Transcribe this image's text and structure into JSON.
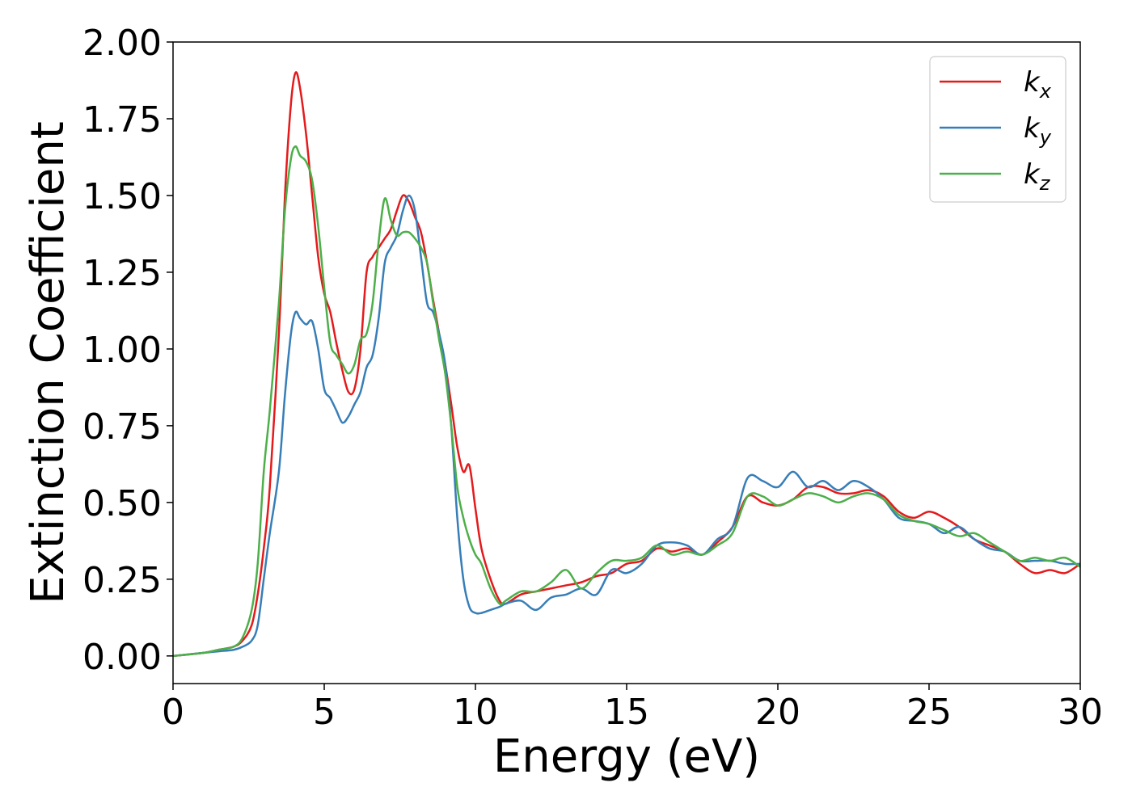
{
  "chart_data": {
    "type": "line",
    "title": "",
    "xlabel": "Energy (eV)",
    "ylabel": "Extinction Coefficient",
    "xlim": [
      0,
      30
    ],
    "ylim": [
      -0.09,
      2.0
    ],
    "xticks": [
      0,
      5,
      10,
      15,
      20,
      25,
      30
    ],
    "xtick_labels": [
      "0",
      "5",
      "10",
      "15",
      "20",
      "25",
      "30"
    ],
    "yticks": [
      0,
      0.25,
      0.5,
      0.75,
      1.0,
      1.25,
      1.5,
      1.75,
      2.0
    ],
    "ytick_labels": [
      "0.00",
      "0.25",
      "0.50",
      "0.75",
      "1.00",
      "1.25",
      "1.50",
      "1.75",
      "2.00"
    ],
    "grid": false,
    "legend_position": "top-right",
    "series": [
      {
        "name": "k_x",
        "label_main": "k",
        "label_sub": "x",
        "color": "#e41a1c",
        "x": [
          0,
          1,
          1.5,
          2,
          2.3,
          2.6,
          2.8,
          3.0,
          3.2,
          3.5,
          3.7,
          3.9,
          4.05,
          4.2,
          4.4,
          4.6,
          4.8,
          5.0,
          5.2,
          5.4,
          5.6,
          5.8,
          6.0,
          6.2,
          6.4,
          6.6,
          6.8,
          7.0,
          7.2,
          7.4,
          7.6,
          7.8,
          8.0,
          8.2,
          8.4,
          8.6,
          8.8,
          9.0,
          9.2,
          9.4,
          9.6,
          9.8,
          10.0,
          10.2,
          10.5,
          10.8,
          11.0,
          11.5,
          12.0,
          12.5,
          13.0,
          13.5,
          14.0,
          14.5,
          15.0,
          15.5,
          16.0,
          16.5,
          17.0,
          17.5,
          18.0,
          18.5,
          19.0,
          19.5,
          20.0,
          20.5,
          21.0,
          21.5,
          22.0,
          22.5,
          23.0,
          23.5,
          24.0,
          24.5,
          25.0,
          25.5,
          26.0,
          26.5,
          27.0,
          27.5,
          28.0,
          28.5,
          29.0,
          29.5,
          30.0
        ],
        "values": [
          0,
          0.01,
          0.02,
          0.03,
          0.05,
          0.1,
          0.2,
          0.35,
          0.55,
          1.05,
          1.5,
          1.8,
          1.9,
          1.85,
          1.7,
          1.5,
          1.3,
          1.18,
          1.12,
          1.02,
          0.93,
          0.86,
          0.87,
          1.0,
          1.25,
          1.3,
          1.33,
          1.36,
          1.39,
          1.45,
          1.5,
          1.48,
          1.43,
          1.38,
          1.28,
          1.16,
          1.05,
          0.95,
          0.82,
          0.68,
          0.6,
          0.62,
          0.48,
          0.35,
          0.25,
          0.18,
          0.17,
          0.2,
          0.21,
          0.22,
          0.23,
          0.24,
          0.26,
          0.27,
          0.3,
          0.31,
          0.35,
          0.34,
          0.35,
          0.33,
          0.37,
          0.42,
          0.52,
          0.5,
          0.49,
          0.51,
          0.55,
          0.55,
          0.53,
          0.53,
          0.54,
          0.52,
          0.47,
          0.45,
          0.47,
          0.45,
          0.42,
          0.38,
          0.36,
          0.34,
          0.3,
          0.27,
          0.28,
          0.27,
          0.3
        ]
      },
      {
        "name": "k_y",
        "label_main": "k",
        "label_sub": "y",
        "color": "#377eb8",
        "x": [
          0,
          1,
          1.5,
          2,
          2.3,
          2.6,
          2.8,
          3.0,
          3.2,
          3.5,
          3.7,
          3.9,
          4.05,
          4.2,
          4.4,
          4.6,
          4.8,
          5.0,
          5.2,
          5.4,
          5.6,
          5.8,
          6.0,
          6.2,
          6.4,
          6.6,
          6.8,
          7.0,
          7.2,
          7.4,
          7.6,
          7.8,
          8.0,
          8.2,
          8.4,
          8.6,
          8.8,
          9.0,
          9.2,
          9.4,
          9.6,
          9.8,
          10.0,
          10.2,
          10.5,
          10.8,
          11.0,
          11.5,
          12.0,
          12.5,
          13.0,
          13.5,
          14.0,
          14.5,
          15.0,
          15.5,
          16.0,
          16.5,
          17.0,
          17.5,
          18.0,
          18.5,
          19.0,
          19.5,
          20.0,
          20.5,
          21.0,
          21.5,
          22.0,
          22.5,
          23.0,
          23.5,
          24.0,
          24.5,
          25.0,
          25.5,
          26.0,
          26.5,
          27.0,
          27.5,
          28.0,
          28.5,
          29.0,
          29.5,
          30.0
        ],
        "values": [
          0,
          0.01,
          0.015,
          0.02,
          0.03,
          0.05,
          0.1,
          0.25,
          0.4,
          0.6,
          0.85,
          1.05,
          1.12,
          1.1,
          1.08,
          1.09,
          1.0,
          0.87,
          0.84,
          0.8,
          0.76,
          0.78,
          0.82,
          0.86,
          0.94,
          0.98,
          1.1,
          1.28,
          1.33,
          1.37,
          1.45,
          1.5,
          1.45,
          1.3,
          1.15,
          1.12,
          1.05,
          0.95,
          0.75,
          0.45,
          0.25,
          0.16,
          0.14,
          0.14,
          0.15,
          0.16,
          0.17,
          0.18,
          0.15,
          0.19,
          0.2,
          0.22,
          0.2,
          0.28,
          0.27,
          0.3,
          0.36,
          0.37,
          0.36,
          0.33,
          0.38,
          0.42,
          0.58,
          0.57,
          0.55,
          0.6,
          0.55,
          0.57,
          0.54,
          0.57,
          0.55,
          0.51,
          0.45,
          0.44,
          0.43,
          0.4,
          0.42,
          0.38,
          0.35,
          0.34,
          0.31,
          0.31,
          0.31,
          0.3,
          0.3
        ]
      },
      {
        "name": "k_z",
        "label_main": "k",
        "label_sub": "z",
        "color": "#4daf4a",
        "x": [
          0,
          1,
          1.5,
          2,
          2.3,
          2.6,
          2.8,
          3.0,
          3.2,
          3.5,
          3.7,
          3.9,
          4.05,
          4.2,
          4.4,
          4.6,
          4.8,
          5.0,
          5.2,
          5.4,
          5.6,
          5.8,
          6.0,
          6.2,
          6.4,
          6.6,
          6.8,
          7.0,
          7.2,
          7.4,
          7.6,
          7.8,
          8.0,
          8.2,
          8.4,
          8.6,
          8.8,
          9.0,
          9.2,
          9.4,
          9.6,
          9.8,
          10.0,
          10.2,
          10.5,
          10.8,
          11.0,
          11.5,
          12.0,
          12.5,
          13.0,
          13.5,
          14.0,
          14.5,
          15.0,
          15.5,
          16.0,
          16.5,
          17.0,
          17.5,
          18.0,
          18.5,
          19.0,
          19.5,
          20.0,
          20.5,
          21.0,
          21.5,
          22.0,
          22.5,
          23.0,
          23.5,
          24.0,
          24.5,
          25.0,
          25.5,
          26.0,
          26.5,
          27.0,
          27.5,
          28.0,
          28.5,
          29.0,
          29.5,
          30.0
        ],
        "values": [
          0,
          0.01,
          0.02,
          0.03,
          0.06,
          0.15,
          0.3,
          0.6,
          0.8,
          1.15,
          1.45,
          1.62,
          1.66,
          1.63,
          1.61,
          1.55,
          1.4,
          1.2,
          1.02,
          0.98,
          0.95,
          0.92,
          0.95,
          1.03,
          1.05,
          1.15,
          1.35,
          1.49,
          1.42,
          1.37,
          1.38,
          1.38,
          1.36,
          1.33,
          1.28,
          1.15,
          1.03,
          0.92,
          0.75,
          0.55,
          0.45,
          0.38,
          0.33,
          0.3,
          0.22,
          0.17,
          0.18,
          0.21,
          0.21,
          0.24,
          0.28,
          0.22,
          0.27,
          0.31,
          0.31,
          0.32,
          0.36,
          0.33,
          0.34,
          0.33,
          0.36,
          0.4,
          0.52,
          0.52,
          0.49,
          0.51,
          0.53,
          0.52,
          0.5,
          0.52,
          0.53,
          0.51,
          0.46,
          0.44,
          0.43,
          0.41,
          0.39,
          0.4,
          0.37,
          0.34,
          0.31,
          0.32,
          0.31,
          0.32,
          0.29
        ]
      }
    ]
  }
}
